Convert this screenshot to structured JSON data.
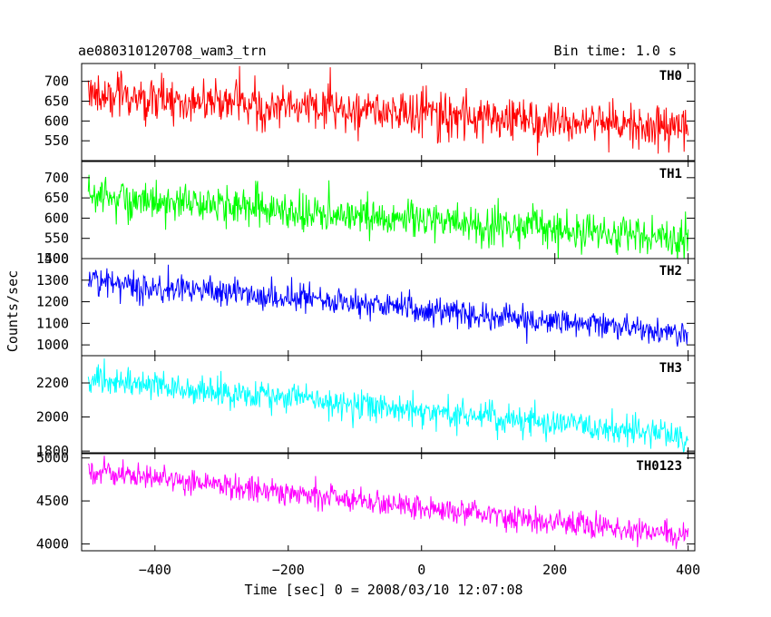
{
  "chart_data": {
    "type": "line",
    "title": "ae080310120708_wam3_trn",
    "bin_time_label": "Bin time: 1.0 s",
    "xlabel": "Time [sec] 0 = 2008/03/10 12:07:08",
    "ylabel": "Counts/sec",
    "xlim": [
      -510,
      410
    ],
    "x_ticks": [
      -400,
      -200,
      0,
      200,
      400
    ],
    "x_tick_labels": [
      "−400",
      "−200",
      "0",
      "200",
      "400"
    ],
    "x_range": [
      -500,
      400
    ],
    "bin_time_s": 1.0,
    "grid": false,
    "panels": [
      {
        "name": "TH0",
        "color": "#ff0000",
        "ylim": [
          500,
          745
        ],
        "y_ticks": [
          550,
          600,
          650,
          700
        ],
        "y_tick_labels": [
          "550",
          "600",
          "650",
          "700"
        ],
        "trend_start": 665,
        "trend_end": 582,
        "noise_sd": 28
      },
      {
        "name": "TH1",
        "color": "#00ff00",
        "ylim": [
          500,
          740
        ],
        "y_ticks": [
          500,
          550,
          600,
          650,
          700
        ],
        "y_tick_labels": [
          "500",
          "550",
          "600",
          "650",
          "700"
        ],
        "trend_start": 655,
        "trend_end": 548,
        "noise_sd": 24
      },
      {
        "name": "TH2",
        "color": "#0000ff",
        "ylim": [
          950,
          1400
        ],
        "y_ticks": [
          1000,
          1100,
          1200,
          1300,
          1400
        ],
        "y_tick_labels": [
          "1000",
          "1100",
          "1200",
          "1300",
          "1400"
        ],
        "trend_start": 1300,
        "trend_end": 1055,
        "noise_sd": 32
      },
      {
        "name": "TH3",
        "color": "#00ffff",
        "ylim": [
          1790,
          2360
        ],
        "y_ticks": [
          1800,
          2000,
          2200
        ],
        "y_tick_labels": [
          "1800",
          "2000",
          "2200"
        ],
        "trend_start": 2225,
        "trend_end": 1885,
        "noise_sd": 42
      },
      {
        "name": "TH0123",
        "color": "#ff00ff",
        "ylim": [
          3920,
          5050
        ],
        "y_ticks": [
          4000,
          4500,
          5000
        ],
        "y_tick_labels": [
          "4000",
          "4500",
          "5000"
        ],
        "trend_start": 4850,
        "trend_end": 4090,
        "noise_sd": 70
      }
    ]
  }
}
